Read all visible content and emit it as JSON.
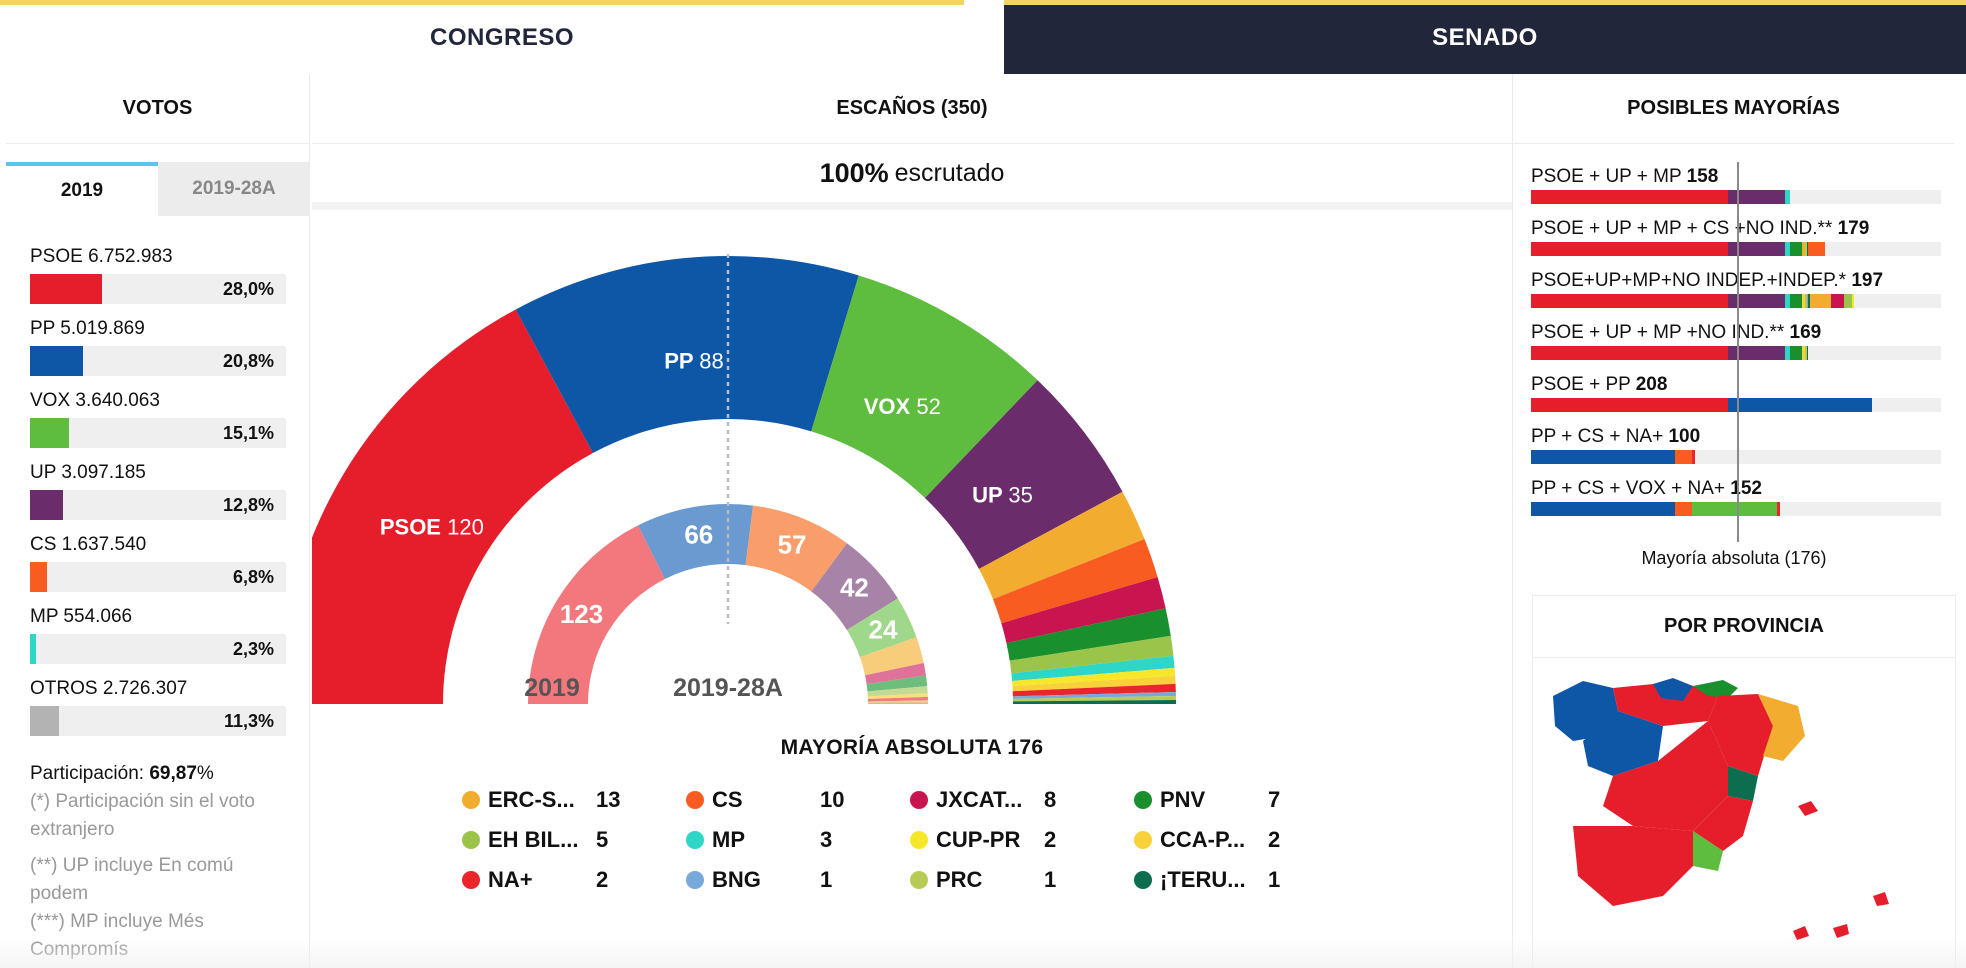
{
  "tabs": {
    "congreso": "CONGRESO",
    "senado": "SENADO"
  },
  "votes": {
    "title": "VOTOS",
    "year_tabs": [
      "2019",
      "2019-28A"
    ],
    "items": [
      {
        "label": "PSOE 6.752.983",
        "pct": "28,0%",
        "share": 0.28,
        "color": "#e61e2b"
      },
      {
        "label": "PP 5.019.869",
        "pct": "20,8%",
        "share": 0.208,
        "color": "#0d57a6"
      },
      {
        "label": "VOX 3.640.063",
        "pct": "15,1%",
        "share": 0.151,
        "color": "#5ebd3e"
      },
      {
        "label": "UP 3.097.185",
        "pct": "12,8%",
        "share": 0.128,
        "color": "#6b2c6b"
      },
      {
        "label": "CS 1.637.540",
        "pct": "6,8%",
        "share": 0.068,
        "color": "#f95c21"
      },
      {
        "label": "MP 554.066",
        "pct": "2,3%",
        "share": 0.023,
        "color": "#2dd6c6"
      },
      {
        "label": "OTROS 2.726.307",
        "pct": "11,3%",
        "share": 0.113,
        "color": "#b3b3b3"
      }
    ],
    "participation_label": "Participación:",
    "participation_value": "69,87",
    "participation_unit": "%",
    "note1": "(*) Participación sin el voto extranjero",
    "note2": "(**) UP incluye En comú podem",
    "note3": "(***) MP incluye Més Compromís"
  },
  "seats": {
    "title": "ESCAÑOS (350)",
    "scrutiny_pct": "100%",
    "scrutiny_label": "escrutado",
    "outer_label": "2019",
    "inner_label": "2019-28A",
    "outer_total": 350,
    "outer": [
      {
        "party": "PSOE",
        "seats": 120,
        "color": "#e61e2b"
      },
      {
        "party": "PP",
        "seats": 88,
        "color": "#0d57a6"
      },
      {
        "party": "VOX",
        "seats": 52,
        "color": "#5ebd3e"
      },
      {
        "party": "UP",
        "seats": 35,
        "color": "#6b2c6b"
      },
      {
        "party": "ERC",
        "seats": 13,
        "color": "#f2ad30"
      },
      {
        "party": "CS",
        "seats": 10,
        "color": "#f95c21"
      },
      {
        "party": "JXCAT",
        "seats": 8,
        "color": "#c8144f"
      },
      {
        "party": "PNV",
        "seats": 7,
        "color": "#1a8f2d"
      },
      {
        "party": "EH BILDU",
        "seats": 5,
        "color": "#9bc44a"
      },
      {
        "party": "MP",
        "seats": 3,
        "color": "#2dd6c6"
      },
      {
        "party": "CUP-PR",
        "seats": 2,
        "color": "#f7e72a"
      },
      {
        "party": "CCA-PNC",
        "seats": 2,
        "color": "#f7d23a"
      },
      {
        "party": "NA+",
        "seats": 2,
        "color": "#e8262c"
      },
      {
        "party": "BNG",
        "seats": 1,
        "color": "#78a9dc"
      },
      {
        "party": "PRC",
        "seats": 1,
        "color": "#b8cc55"
      },
      {
        "party": "TERUEL",
        "seats": 1,
        "color": "#0d6e4f"
      }
    ],
    "inner_total": 350,
    "inner": [
      {
        "party": "PSOE",
        "seats": 123,
        "color": "#f2787d"
      },
      {
        "party": "PP",
        "seats": 66,
        "color": "#6a9ad0"
      },
      {
        "party": "CS",
        "seats": 57,
        "color": "#f99d6a"
      },
      {
        "party": "UP",
        "seats": 42,
        "color": "#a883a8"
      },
      {
        "party": "VOX",
        "seats": 24,
        "color": "#9fd88a"
      },
      {
        "party": "ERC",
        "seats": 15,
        "color": "#f7cc7a"
      },
      {
        "party": "JXCAT",
        "seats": 7,
        "color": "#e0729a"
      },
      {
        "party": "PNV",
        "seats": 6,
        "color": "#6fbd7d"
      },
      {
        "party": "EH BILDU",
        "seats": 4,
        "color": "#c4db94"
      },
      {
        "party": "CCA-PNC",
        "seats": 2,
        "color": "#f8e07e"
      },
      {
        "party": "NA+",
        "seats": 2,
        "color": "#f07c7f"
      },
      {
        "party": "PRC",
        "seats": 1,
        "color": "#d3de98"
      },
      {
        "party": "Compromís",
        "seats": 1,
        "color": "#f4b07a"
      }
    ],
    "majority_title": "MAYORÍA ABSOLUTA",
    "majority_value": "176",
    "legend": [
      {
        "name": "ERC-S...",
        "count": "13",
        "color": "#f2ad30"
      },
      {
        "name": "CS",
        "count": "10",
        "color": "#f95c21"
      },
      {
        "name": "JXCAT...",
        "count": "8",
        "color": "#c8144f"
      },
      {
        "name": "PNV",
        "count": "7",
        "color": "#1a8f2d"
      },
      {
        "name": "EH BIL...",
        "count": "5",
        "color": "#9bc44a"
      },
      {
        "name": "MP",
        "count": "3",
        "color": "#2dd6c6"
      },
      {
        "name": "CUP-PR",
        "count": "2",
        "color": "#f7e72a"
      },
      {
        "name": "CCA-P...",
        "count": "2",
        "color": "#f7d23a"
      },
      {
        "name": "NA+",
        "count": "2",
        "color": "#e8262c"
      },
      {
        "name": "BNG",
        "count": "1",
        "color": "#78a9dc"
      },
      {
        "name": "PRC",
        "count": "1",
        "color": "#b8cc55"
      },
      {
        "name": "¡TERU...",
        "count": "1",
        "color": "#0d6e4f"
      }
    ]
  },
  "majorities": {
    "title": "POSIBLES MAYORÍAS",
    "majority_label": "Mayoría absoluta (176)",
    "items": [
      {
        "label": "PSOE + UP + MP ",
        "total": "158",
        "segs": [
          [
            120,
            "#e61e2b"
          ],
          [
            35,
            "#6b2c6b"
          ],
          [
            3,
            "#2dd6c6"
          ]
        ]
      },
      {
        "label": "PSOE + UP + MP + CS +NO IND.** ",
        "total": "179",
        "segs": [
          [
            120,
            "#e61e2b"
          ],
          [
            35,
            "#6b2c6b"
          ],
          [
            3,
            "#2dd6c6"
          ],
          [
            7,
            "#1a8f2d"
          ],
          [
            2,
            "#f2ad30"
          ],
          [
            1,
            "#b8cc55"
          ],
          [
            1,
            "#0d6e4f"
          ],
          [
            10,
            "#f95c21"
          ]
        ]
      },
      {
        "label": "PSOE+UP+MP+NO INDEP.+INDEP.* ",
        "total": "197",
        "segs": [
          [
            120,
            "#e61e2b"
          ],
          [
            35,
            "#6b2c6b"
          ],
          [
            3,
            "#2dd6c6"
          ],
          [
            7,
            "#1a8f2d"
          ],
          [
            2,
            "#f7d23a"
          ],
          [
            1,
            "#b8cc55"
          ],
          [
            1,
            "#78a9dc"
          ],
          [
            1,
            "#0d6e4f"
          ],
          [
            13,
            "#f2ad30"
          ],
          [
            8,
            "#c8144f"
          ],
          [
            5,
            "#9bc44a"
          ],
          [
            1,
            "#f7e72a"
          ]
        ]
      },
      {
        "label": "PSOE + UP + MP +NO IND.** ",
        "total": "169",
        "segs": [
          [
            120,
            "#e61e2b"
          ],
          [
            35,
            "#6b2c6b"
          ],
          [
            3,
            "#2dd6c6"
          ],
          [
            7,
            "#1a8f2d"
          ],
          [
            2,
            "#f7d23a"
          ],
          [
            1,
            "#b8cc55"
          ],
          [
            1,
            "#0d6e4f"
          ]
        ]
      },
      {
        "label": "PSOE + PP ",
        "total": "208",
        "segs": [
          [
            120,
            "#e61e2b"
          ],
          [
            88,
            "#0d57a6"
          ]
        ]
      },
      {
        "label": "PP + CS + NA+ ",
        "total": "100",
        "segs": [
          [
            88,
            "#0d57a6"
          ],
          [
            10,
            "#f95c21"
          ],
          [
            2,
            "#e8262c"
          ]
        ]
      },
      {
        "label": "PP + CS + VOX + NA+ ",
        "total": "152",
        "segs": [
          [
            88,
            "#0d57a6"
          ],
          [
            10,
            "#f95c21"
          ],
          [
            52,
            "#5ebd3e"
          ],
          [
            2,
            "#e8262c"
          ]
        ]
      }
    ]
  },
  "province": {
    "title": "POR PROVINCIA"
  }
}
